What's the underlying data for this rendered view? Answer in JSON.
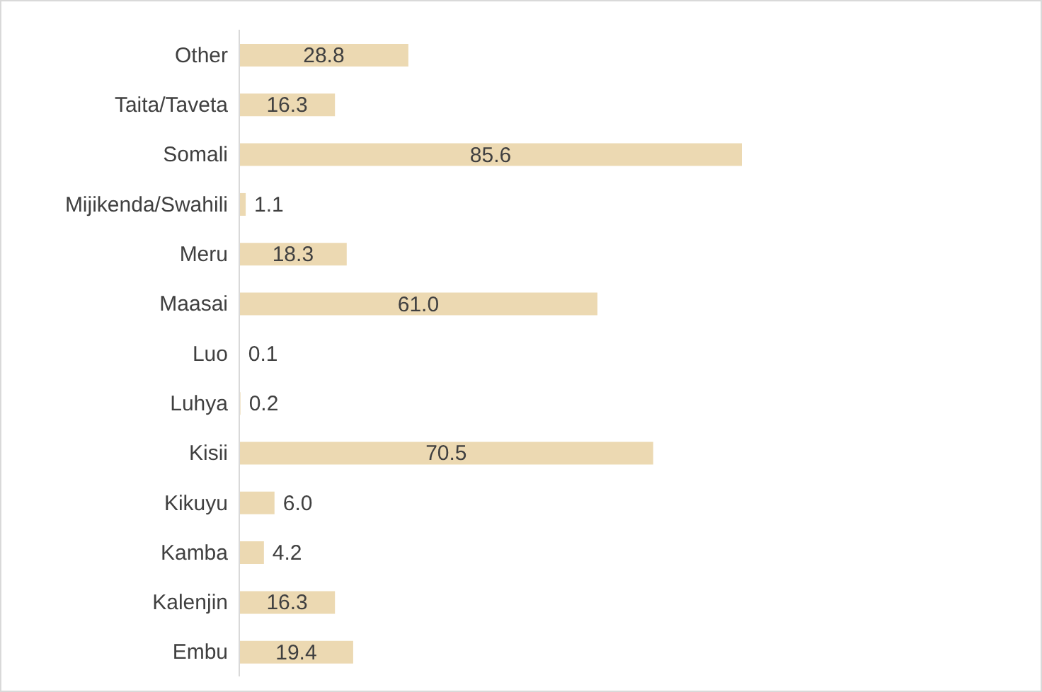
{
  "chart_data": {
    "type": "bar",
    "orientation": "horizontal",
    "categories": [
      "Other",
      "Taita/Taveta",
      "Somali",
      "Mijikenda/Swahili",
      "Meru",
      "Maasai",
      "Luo",
      "Luhya",
      "Kisii",
      "Kikuyu",
      "Kamba",
      "Kalenjin",
      "Embu"
    ],
    "values": [
      28.8,
      16.3,
      85.6,
      1.1,
      18.3,
      61.0,
      0.1,
      0.2,
      70.5,
      6.0,
      4.2,
      16.3,
      19.4
    ],
    "value_labels": [
      "28.8",
      "16.3",
      "85.6",
      "1.1",
      "18.3",
      "61.0",
      "0.1",
      "0.2",
      "70.5",
      "6.0",
      "4.2",
      "16.3",
      "19.4"
    ],
    "color": "#ecd9b2"
  }
}
